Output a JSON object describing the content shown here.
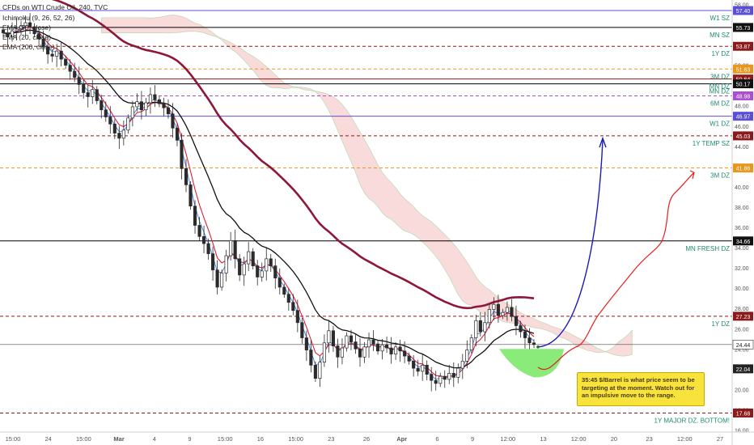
{
  "header": {
    "title": "CFDs on WTI Crude Oil, 240, TVC",
    "indicators": [
      "Ichimoku (9, 26, 52, 26)",
      "EMA (90, close)",
      "EMA (20, close)",
      "EMA (200, close)"
    ]
  },
  "annotation": "35:45 $/Barrel is what price seem to be targeting at the moment. Watch out for an impulsive move to the range.",
  "colors": {
    "supply": "#8b1a1a",
    "demand_orange": "#e8961c",
    "weekly": "#5b4fd8",
    "monthly": "#000000",
    "six_month": "#a94fd1",
    "teal_label": "#1d8c6e",
    "candle_up": "#2b2b2b",
    "candle_down": "#2b2b2b",
    "ema90": "#111111",
    "ema20": "#d9203c",
    "ema200": "#8e1739",
    "cloud_bear": "#f7cfcf",
    "cloud_bull": "#d6ecd1",
    "tenkan": "#3b7be0",
    "forecast_blue": "#1b1bb5",
    "forecast_red": "#e61e1e",
    "target_zone": "#7de86c"
  },
  "chart_data": {
    "type": "candlestick",
    "title": "CFDs on WTI Crude Oil, 240, TVC",
    "y_range": [
      15.8,
      58.2
    ],
    "x_labels": [
      "15:00",
      "24",
      "15:00",
      "Mar",
      "4",
      "9",
      "15:00",
      "16",
      "15:00",
      "23",
      "26",
      "Apr",
      "6",
      "9",
      "12:00",
      "13",
      "12:00",
      "20",
      "23",
      "12:00",
      "27"
    ],
    "y_ticks": [
      16.0,
      18.0,
      20.0,
      22.0,
      24.0,
      26.0,
      28.0,
      30.0,
      32.0,
      34.0,
      36.0,
      38.0,
      40.0,
      42.0,
      44.0,
      46.0,
      48.0,
      50.0,
      52.0,
      54.0,
      56.0,
      58.0
    ],
    "levels": [
      {
        "label": "W1 SZ",
        "price": 57.4,
        "badge": "57.40",
        "style": "weekly"
      },
      {
        "label": "MN SZ",
        "price": 55.73,
        "badge": "55.73",
        "style": "monthly"
      },
      {
        "label": "1Y DZ",
        "price": 53.87,
        "badge": "53.87",
        "style": "supply_dashed"
      },
      {
        "label": "3M DZ",
        "price": 51.63,
        "badge": "51.63",
        "style": "orange_dashed"
      },
      {
        "label": "MN DZ",
        "price": 50.64,
        "badge": "50.64",
        "style": "supply"
      },
      {
        "label": "MN DZ",
        "price": 50.17,
        "badge": "50.17",
        "style": "monthly"
      },
      {
        "label": "6M DZ",
        "price": 48.98,
        "badge": "48.98",
        "style": "six_month"
      },
      {
        "label": "W1 DZ",
        "price": 46.97,
        "badge": "46.97",
        "style": "weekly"
      },
      {
        "label": "1Y TEMP SZ",
        "price": 45.03,
        "badge": "45.03",
        "style": "supply_dashed"
      },
      {
        "label": "3M DZ",
        "price": 41.86,
        "badge": "41.86",
        "style": "orange_dashed"
      },
      {
        "label": "MN FRESH DZ",
        "price": 34.66,
        "badge": "34.66",
        "style": "monthly"
      },
      {
        "label": "1Y DZ",
        "price": 27.23,
        "badge": "27.23",
        "style": "supply_dashed"
      },
      {
        "label": "",
        "price": 24.44,
        "badge": "24.44",
        "style": "current"
      },
      {
        "label": "",
        "price": 22.04,
        "badge": "22.04",
        "style": "current_dark"
      },
      {
        "label": "1Y MAJOR DZ. BOTTOM!",
        "price": 17.68,
        "badge": "17.68",
        "style": "supply_dashed"
      }
    ],
    "close": [
      55.2,
      54.8,
      55.4,
      55.6,
      55.9,
      56.2,
      55.8,
      55.1,
      54.6,
      53.8,
      53.1,
      52.9,
      53.4,
      52.6,
      52.0,
      51.4,
      50.8,
      50.1,
      49.3,
      48.9,
      49.6,
      48.5,
      47.6,
      46.9,
      46.2,
      45.3,
      44.8,
      45.6,
      46.8,
      47.9,
      48.4,
      47.6,
      48.3,
      49.1,
      48.6,
      48.2,
      47.8,
      47.2,
      45.8,
      44.6,
      41.8,
      40.2,
      38.1,
      36.2,
      35.1,
      34.4,
      33.4,
      31.8,
      30.1,
      31.5,
      33.2,
      34.7,
      32.9,
      31.3,
      32.4,
      33.6,
      32.2,
      31.1,
      31.7,
      32.9,
      32.2,
      31.0,
      30.1,
      29.4,
      28.6,
      27.8,
      26.6,
      25.1,
      23.9,
      22.4,
      21.1,
      22.7,
      24.6,
      25.8,
      24.3,
      23.2,
      24.1,
      25.3,
      24.7,
      24.0,
      23.2,
      24.2,
      24.9,
      24.5,
      23.8,
      24.4,
      24.1,
      23.5,
      24.2,
      23.8,
      23.3,
      22.8,
      22.1,
      21.8,
      22.4,
      21.5,
      20.9,
      20.6,
      21.3,
      21.0,
      21.6,
      21.2,
      22.1,
      22.8,
      23.9,
      25.1,
      26.8,
      25.7,
      26.6,
      27.9,
      28.4,
      27.3,
      27.6,
      28.1,
      27.2,
      26.3,
      25.7,
      25.1,
      24.6,
      24.44
    ]
  }
}
